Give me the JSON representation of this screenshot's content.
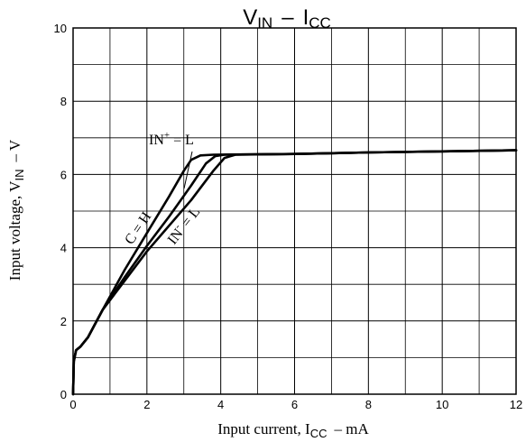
{
  "chart_data": {
    "type": "line",
    "title_main": "V",
    "title_sub": "IN",
    "title_dash": "–",
    "title_main2": "I",
    "title_sub2": "CC",
    "xlabel_main": "Input current, I",
    "xlabel_sub": "CC",
    "xlabel_unit": "–  mA",
    "ylabel_main": "Input voltage, V",
    "ylabel_sub": "IN",
    "ylabel_unit": "–  V",
    "xlim": [
      0,
      12
    ],
    "ylim": [
      0,
      10
    ],
    "x_ticks": [
      "0",
      "2",
      "4",
      "6",
      "8",
      "10",
      "12"
    ],
    "y_ticks": [
      "0",
      "2",
      "4",
      "6",
      "8",
      "10"
    ],
    "grid": true,
    "annotations": {
      "in_plus": {
        "text_main": "IN",
        "text_sup": "+",
        "text_rest": " = L"
      },
      "c_h": {
        "text": "C = H"
      },
      "in_minus": {
        "text_main": "IN",
        "text_sup": "-",
        "text_rest": " = L"
      }
    },
    "series": [
      {
        "points": [
          [
            0,
            0
          ],
          [
            0.02,
            0.9
          ],
          [
            0.08,
            1.2
          ],
          [
            0.2,
            1.3
          ],
          [
            0.4,
            1.55
          ],
          [
            0.8,
            2.3
          ],
          [
            1.4,
            3.4
          ],
          [
            2.0,
            4.4
          ],
          [
            2.6,
            5.4
          ],
          [
            3.0,
            6.1
          ],
          [
            3.2,
            6.4
          ],
          [
            3.45,
            6.52
          ],
          [
            3.8,
            6.54
          ],
          [
            6,
            6.56
          ],
          [
            8,
            6.6
          ],
          [
            10,
            6.63
          ],
          [
            12,
            6.66
          ]
        ]
      },
      {
        "points": [
          [
            0,
            0
          ],
          [
            0.02,
            0.9
          ],
          [
            0.08,
            1.2
          ],
          [
            0.2,
            1.3
          ],
          [
            0.4,
            1.55
          ],
          [
            0.8,
            2.3
          ],
          [
            1.4,
            3.2
          ],
          [
            2.0,
            4.05
          ],
          [
            2.6,
            4.85
          ],
          [
            3.2,
            5.7
          ],
          [
            3.6,
            6.3
          ],
          [
            3.85,
            6.5
          ],
          [
            4.1,
            6.54
          ],
          [
            6,
            6.56
          ],
          [
            8,
            6.6
          ],
          [
            10,
            6.63
          ],
          [
            12,
            6.66
          ]
        ]
      },
      {
        "points": [
          [
            0,
            0
          ],
          [
            0.02,
            0.9
          ],
          [
            0.08,
            1.2
          ],
          [
            0.2,
            1.3
          ],
          [
            0.4,
            1.55
          ],
          [
            0.8,
            2.3
          ],
          [
            1.4,
            3.1
          ],
          [
            2.0,
            3.9
          ],
          [
            2.6,
            4.6
          ],
          [
            3.2,
            5.3
          ],
          [
            3.8,
            6.1
          ],
          [
            4.1,
            6.45
          ],
          [
            4.4,
            6.54
          ],
          [
            6,
            6.56
          ],
          [
            8,
            6.6
          ],
          [
            10,
            6.63
          ],
          [
            12,
            6.66
          ]
        ]
      }
    ]
  }
}
